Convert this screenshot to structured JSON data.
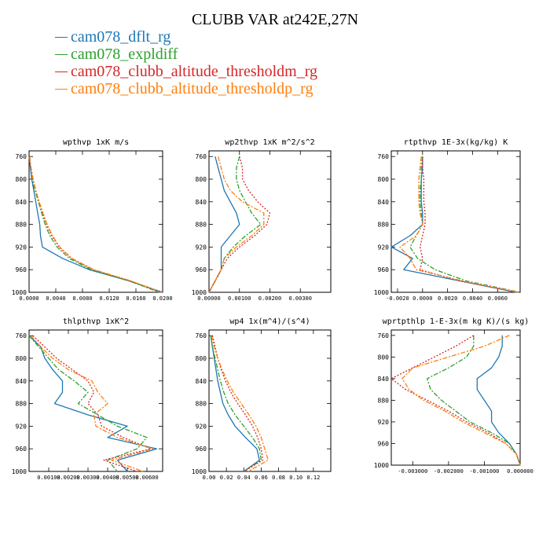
{
  "title": "CLUBB VAR at242E,27N",
  "legend": [
    {
      "label": "cam078_dflt_rg",
      "color": "#1f77b4",
      "dash": ""
    },
    {
      "label": "cam078_expldiff",
      "color": "#2ca02c",
      "dash": "6,2,2,2"
    },
    {
      "label": "cam078_clubb_altitude_thresholdm_rg",
      "color": "#d62728",
      "dash": "2,2"
    },
    {
      "label": "cam078_clubb_altitude_thresholdp_rg",
      "color": "#ff7f0e",
      "dash": "6,2,2,2"
    }
  ],
  "chart_data": [
    {
      "type": "line",
      "title": "wpthvp  1xK m/s",
      "xlim": [
        0,
        0.02
      ],
      "ylim": [
        750,
        1000
      ],
      "x_ticks": [
        "0.0000",
        "0.0040",
        "0.0080",
        "0.0120",
        "0.0160",
        "0.0200"
      ],
      "x_tick_values": [
        0,
        0.004,
        0.008,
        0.012,
        0.016,
        0.02
      ],
      "y_ticks": [
        760,
        800,
        840,
        880,
        920,
        960,
        1000
      ],
      "y": [
        760,
        780,
        800,
        820,
        840,
        860,
        880,
        900,
        920,
        940,
        960,
        980,
        1000
      ],
      "series": [
        {
          "name": "cam078_dflt_rg",
          "values": [
            0.0,
            0.0002,
            0.0004,
            0.0007,
            0.001,
            0.0013,
            0.0016,
            0.0017,
            0.002,
            0.005,
            0.009,
            0.015,
            0.02
          ]
        },
        {
          "name": "cam078_expldiff",
          "values": [
            0.0,
            0.0003,
            0.0005,
            0.0009,
            0.0014,
            0.0019,
            0.0024,
            0.0031,
            0.0042,
            0.006,
            0.0093,
            0.015,
            0.0195
          ]
        },
        {
          "name": "cam078_clubb_altitude_thresholdm_rg",
          "values": [
            0.0,
            0.0003,
            0.0006,
            0.001,
            0.0015,
            0.002,
            0.0026,
            0.0034,
            0.0045,
            0.0063,
            0.0096,
            0.0152,
            0.0197
          ]
        },
        {
          "name": "cam078_clubb_altitude_thresholdp_rg",
          "values": [
            0.0001,
            0.0003,
            0.0006,
            0.001,
            0.0015,
            0.0021,
            0.0027,
            0.0035,
            0.0046,
            0.0064,
            0.0097,
            0.0153,
            0.0198
          ]
        }
      ]
    },
    {
      "type": "line",
      "title": "wp2thvp  1xK m^2/s^2",
      "xlim": [
        0,
        0.004
      ],
      "ylim": [
        750,
        1000
      ],
      "x_ticks": [
        "0.00000",
        "0.00100",
        "0.00200",
        "0.00300"
      ],
      "x_tick_values": [
        0,
        0.001,
        0.002,
        0.003
      ],
      "y_ticks": [
        760,
        800,
        840,
        880,
        920,
        960,
        1000
      ],
      "y": [
        760,
        780,
        800,
        820,
        840,
        860,
        880,
        900,
        920,
        940,
        960,
        980,
        1000
      ],
      "series": [
        {
          "name": "cam078_dflt_rg",
          "values": [
            0.0002,
            0.0003,
            0.0004,
            0.0005,
            0.0007,
            0.0009,
            0.001,
            0.0007,
            0.0004,
            0.0004,
            0.0004,
            0.0002,
            0.0
          ]
        },
        {
          "name": "cam078_expldiff",
          "values": [
            0.001,
            0.0009,
            0.0009,
            0.001,
            0.0012,
            0.0014,
            0.0017,
            0.0012,
            0.0008,
            0.0005,
            0.0004,
            0.0002,
            0.0
          ]
        },
        {
          "name": "cam078_clubb_altitude_thresholdm_rg",
          "values": [
            0.001,
            0.0011,
            0.0011,
            0.0013,
            0.0016,
            0.002,
            0.0019,
            0.0015,
            0.001,
            0.0006,
            0.0004,
            0.0002,
            0.0
          ]
        },
        {
          "name": "cam078_clubb_altitude_thresholdp_rg",
          "values": [
            0.0003,
            0.0004,
            0.0005,
            0.0007,
            0.0011,
            0.0018,
            0.0018,
            0.0014,
            0.0009,
            0.0005,
            0.0004,
            0.0002,
            0.0
          ]
        }
      ]
    },
    {
      "type": "line",
      "title": "rtpthvp  1E-3x(kg/kg) K",
      "xlim": [
        -0.0025,
        0.0078
      ],
      "ylim": [
        750,
        1000
      ],
      "x_ticks": [
        "-0.0020",
        "0.0000",
        "0.0020",
        "0.0040",
        "0.0060"
      ],
      "x_tick_values": [
        -0.002,
        0,
        0.002,
        0.004,
        0.006
      ],
      "y_ticks": [
        760,
        800,
        840,
        880,
        920,
        960,
        1000
      ],
      "y": [
        760,
        780,
        800,
        820,
        840,
        860,
        880,
        900,
        920,
        940,
        960,
        980,
        1000
      ],
      "series": [
        {
          "name": "cam078_dflt_rg",
          "values": [
            0.0,
            0.0,
            -0.0001,
            -0.0001,
            -0.0001,
            0.0,
            0.0,
            -0.001,
            -0.0025,
            -0.0008,
            -0.0015,
            0.003,
            0.0075
          ]
        },
        {
          "name": "cam078_expldiff",
          "values": [
            0.0,
            -0.0001,
            -0.0001,
            -0.0002,
            -0.0002,
            -0.0001,
            0.0,
            -0.0005,
            -0.001,
            -0.0004,
            0.001,
            0.0035,
            0.0078
          ]
        },
        {
          "name": "cam078_clubb_altitude_thresholdm_rg",
          "values": [
            0.0,
            0.0,
            0.0001,
            0.0001,
            0.0001,
            0.0002,
            0.0002,
            0.0,
            -0.0002,
            0.0,
            -0.0002,
            0.003,
            0.0076
          ]
        },
        {
          "name": "cam078_clubb_altitude_thresholdp_rg",
          "values": [
            -0.0001,
            -0.0002,
            -0.0003,
            -0.0003,
            -0.0003,
            -0.0002,
            0.0,
            -0.0005,
            -0.0018,
            -0.001,
            -0.0005,
            0.0032,
            0.0077
          ]
        }
      ]
    },
    {
      "type": "line",
      "title": "thlpthvp  1xK^2",
      "xlim": [
        0,
        0.0068
      ],
      "ylim": [
        750,
        1000
      ],
      "x_ticks": [
        "0.00100",
        "0.00200",
        "0.00300",
        "0.00400",
        "0.00500",
        "0.00600"
      ],
      "x_tick_values": [
        0.001,
        0.002,
        0.003,
        0.004,
        0.005,
        0.006
      ],
      "y_ticks": [
        760,
        800,
        840,
        880,
        920,
        960,
        1000
      ],
      "y": [
        760,
        780,
        800,
        820,
        840,
        860,
        880,
        900,
        920,
        940,
        960,
        980,
        1000
      ],
      "series": [
        {
          "name": "cam078_dflt_rg",
          "values": [
            0.0,
            0.0006,
            0.0008,
            0.0012,
            0.0017,
            0.0017,
            0.0013,
            0.003,
            0.005,
            0.004,
            0.0065,
            0.0045,
            0.005
          ]
        },
        {
          "name": "cam078_expldiff",
          "values": [
            0.0,
            0.0005,
            0.001,
            0.0015,
            0.0023,
            0.003,
            0.0025,
            0.0035,
            0.0045,
            0.006,
            0.0055,
            0.004,
            0.0045
          ]
        },
        {
          "name": "cam078_clubb_altitude_thresholdm_rg",
          "values": [
            0.0002,
            0.0008,
            0.0014,
            0.0022,
            0.003,
            0.0033,
            0.003,
            0.0035,
            0.0037,
            0.0048,
            0.0062,
            0.0038,
            0.0055
          ]
        },
        {
          "name": "cam078_clubb_altitude_thresholdp_rg",
          "values": [
            0.0001,
            0.0006,
            0.0012,
            0.002,
            0.0032,
            0.0035,
            0.004,
            0.0033,
            0.0034,
            0.0045,
            0.0063,
            0.0042,
            0.0058
          ]
        }
      ]
    },
    {
      "type": "line",
      "title": "wp4  1x(m^4)/(s^4)",
      "xlim": [
        0,
        0.14
      ],
      "ylim": [
        750,
        1000
      ],
      "x_ticks": [
        "0.00",
        "0.02",
        "0.04",
        "0.06",
        "0.08",
        "0.10",
        "0.12"
      ],
      "x_tick_values": [
        0,
        0.02,
        0.04,
        0.06,
        0.08,
        0.1,
        0.12
      ],
      "y_ticks": [
        760,
        800,
        840,
        880,
        920,
        960,
        1000
      ],
      "y": [
        760,
        780,
        800,
        820,
        840,
        860,
        880,
        900,
        920,
        940,
        960,
        980,
        1000
      ],
      "series": [
        {
          "name": "cam078_dflt_rg",
          "values": [
            0.002,
            0.004,
            0.006,
            0.008,
            0.01,
            0.013,
            0.016,
            0.022,
            0.03,
            0.042,
            0.055,
            0.058,
            0.04
          ]
        },
        {
          "name": "cam078_expldiff",
          "values": [
            0.002,
            0.004,
            0.007,
            0.01,
            0.013,
            0.017,
            0.022,
            0.03,
            0.04,
            0.05,
            0.058,
            0.06,
            0.04
          ]
        },
        {
          "name": "cam078_clubb_altitude_thresholdm_rg",
          "values": [
            0.004,
            0.007,
            0.01,
            0.014,
            0.019,
            0.025,
            0.033,
            0.042,
            0.05,
            0.056,
            0.06,
            0.062,
            0.04
          ]
        },
        {
          "name": "cam078_clubb_altitude_thresholdp_rg",
          "values": [
            0.003,
            0.006,
            0.01,
            0.015,
            0.021,
            0.028,
            0.037,
            0.046,
            0.054,
            0.06,
            0.064,
            0.068,
            0.045
          ]
        }
      ]
    },
    {
      "type": "line",
      "title": "wprtpthlp  1-E-3x(m kg K)/(s kg)",
      "xlim": [
        -0.0036,
        0.0
      ],
      "ylim": [
        750,
        1000
      ],
      "x_ticks": [
        "-0.003000",
        "-0.002000",
        "-0.001000",
        "0.000000"
      ],
      "x_tick_values": [
        -0.003,
        -0.002,
        -0.001,
        0.0
      ],
      "y_ticks": [
        760,
        800,
        840,
        880,
        920,
        960,
        1000
      ],
      "y": [
        760,
        780,
        800,
        820,
        840,
        860,
        880,
        900,
        920,
        940,
        960,
        980,
        1000
      ],
      "series": [
        {
          "name": "cam078_dflt_rg",
          "values": [
            -0.0005,
            -0.0005,
            -0.0006,
            -0.0008,
            -0.0012,
            -0.0012,
            -0.001,
            -0.0008,
            -0.0008,
            -0.0006,
            -0.0003,
            -0.0001,
            0.0
          ]
        },
        {
          "name": "cam078_expldiff",
          "values": [
            -0.0013,
            -0.0013,
            -0.0015,
            -0.002,
            -0.0026,
            -0.0025,
            -0.0022,
            -0.0018,
            -0.0014,
            -0.0008,
            -0.0003,
            -0.0001,
            0.0
          ]
        },
        {
          "name": "cam078_clubb_altitude_thresholdm_rg",
          "values": [
            -0.0013,
            -0.0018,
            -0.0024,
            -0.003,
            -0.0036,
            -0.0032,
            -0.0026,
            -0.002,
            -0.0015,
            -0.0009,
            -0.0004,
            -0.0001,
            0.0
          ]
        },
        {
          "name": "cam078_clubb_altitude_thresholdp_rg",
          "values": [
            -0.0003,
            -0.001,
            -0.002,
            -0.003,
            -0.0033,
            -0.0031,
            -0.0027,
            -0.0021,
            -0.0016,
            -0.001,
            -0.0004,
            -0.0001,
            0.0
          ]
        }
      ]
    }
  ]
}
